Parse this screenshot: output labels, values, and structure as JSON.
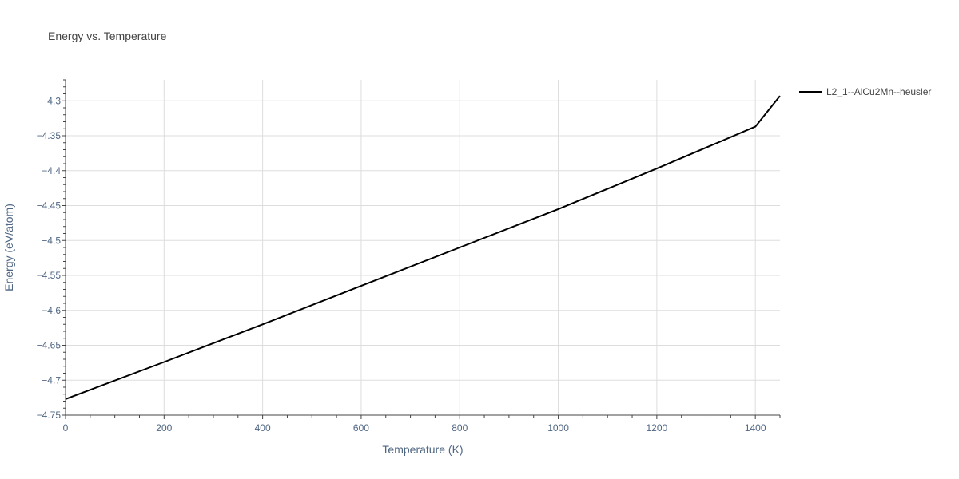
{
  "chart_data": {
    "type": "line",
    "title": "Energy vs. Temperature",
    "xlabel": "Temperature (K)",
    "ylabel": "Energy (eV/atom)",
    "xlim": [
      0,
      1450
    ],
    "ylim": [
      -4.75,
      -4.27
    ],
    "x_ticks": [
      0,
      200,
      400,
      600,
      800,
      1000,
      1200,
      1400
    ],
    "y_ticks": [
      -4.75,
      -4.7,
      -4.65,
      -4.6,
      -4.55,
      -4.5,
      -4.45,
      -4.4,
      -4.35,
      -4.3
    ],
    "x_tick_labels": [
      "0",
      "200",
      "400",
      "600",
      "800",
      "1000",
      "1200",
      "1400"
    ],
    "y_tick_labels": [
      "−4.75",
      "−4.7",
      "−4.65",
      "−4.6",
      "−4.55",
      "−4.5",
      "−4.45",
      "−4.4",
      "−4.35",
      "−4.3"
    ],
    "grid": true,
    "legend_position": "right",
    "series": [
      {
        "name": "L2_1--AlCu2Mn--heusler",
        "color": "#000000",
        "x": [
          0,
          200,
          400,
          600,
          800,
          1000,
          1200,
          1400,
          1450
        ],
        "y": [
          -4.727,
          -4.674,
          -4.62,
          -4.565,
          -4.51,
          -4.455,
          -4.397,
          -4.337,
          -4.293
        ]
      }
    ]
  }
}
